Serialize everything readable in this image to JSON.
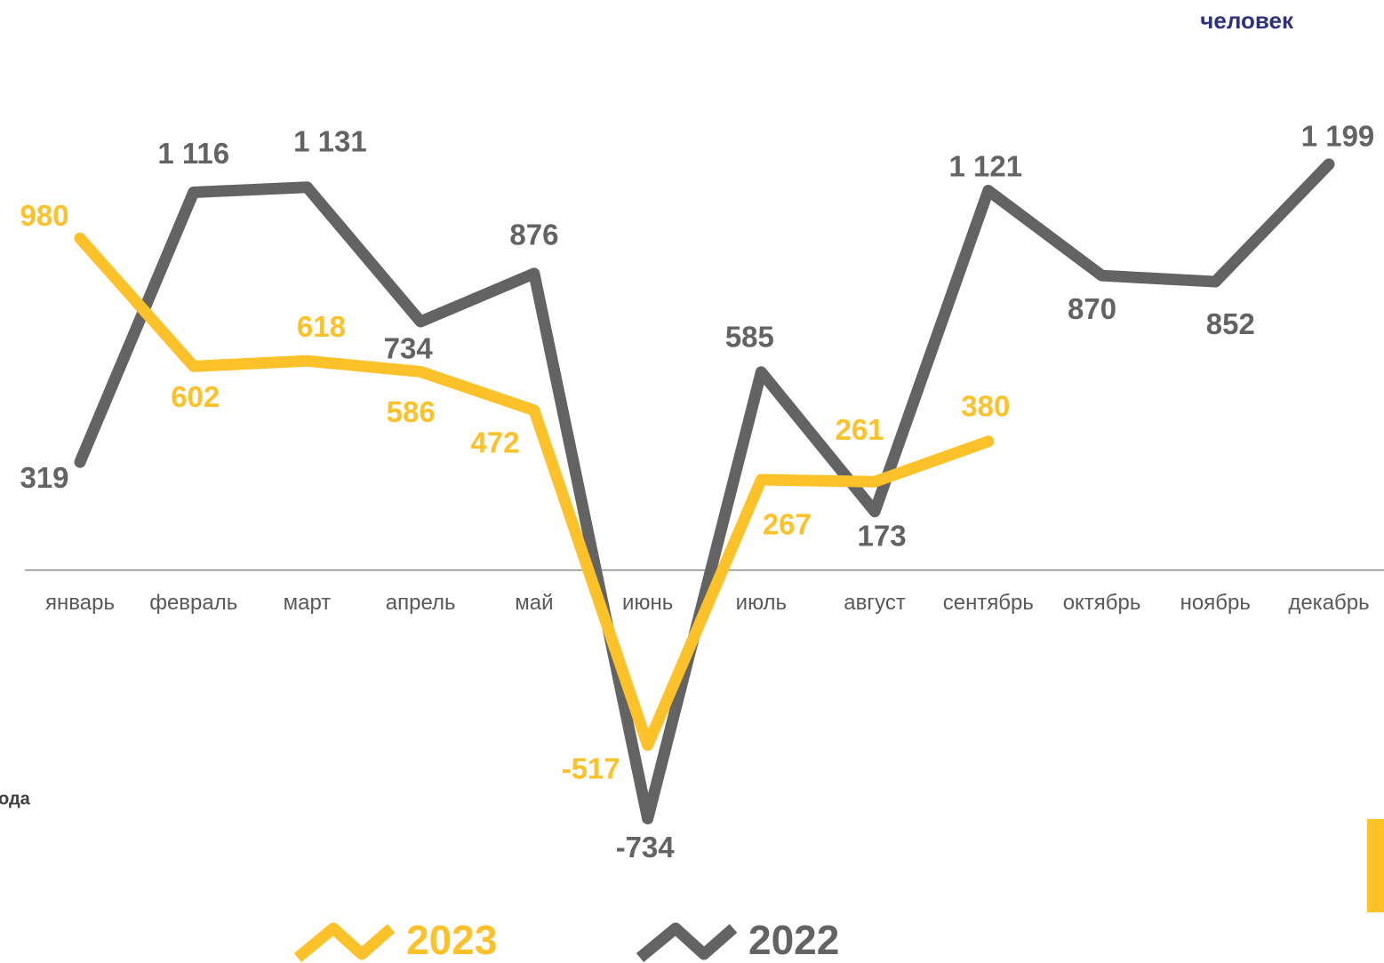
{
  "chart_data": {
    "type": "line",
    "unit_label": "человек",
    "annotations": [
      "ода"
    ],
    "categories": [
      "январь",
      "февраль",
      "март",
      "апрель",
      "май",
      "июнь",
      "июль",
      "август",
      "сентябрь",
      "октябрь",
      "ноябрь",
      "декабрь"
    ],
    "series": [
      {
        "name": "2023",
        "color": "#fdc12a",
        "values": [
          980,
          602,
          618,
          586,
          472,
          -517,
          267,
          261,
          380,
          null,
          null,
          null
        ]
      },
      {
        "name": "2022",
        "color": "#636363",
        "values": [
          319,
          1116,
          1131,
          734,
          876,
          -734,
          585,
          173,
          1121,
          870,
          852,
          1199
        ],
        "value_labels": [
          "319",
          "1 116",
          "1 131",
          "734",
          "876",
          "-734",
          "585",
          "173",
          "1 121",
          "870",
          "852",
          "1 199"
        ]
      }
    ],
    "ylim": [
      -1150,
      1600
    ],
    "legend": "bottom"
  }
}
